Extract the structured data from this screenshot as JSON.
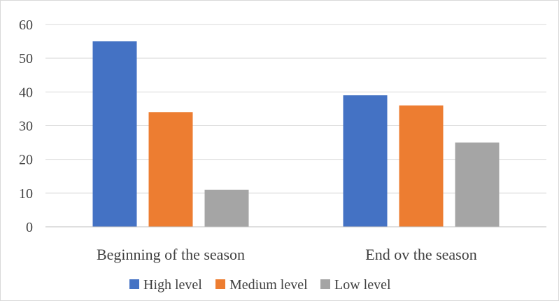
{
  "chart_data": {
    "type": "bar",
    "title": "",
    "xlabel": "",
    "ylabel": "",
    "categories": [
      "Beginning of the season",
      "End ov the season"
    ],
    "series": [
      {
        "name": "High level",
        "values": [
          55,
          39
        ],
        "color": "#4472c4"
      },
      {
        "name": "Medium level",
        "values": [
          34,
          36
        ],
        "color": "#ed7d31"
      },
      {
        "name": "Low level",
        "values": [
          11,
          25
        ],
        "color": "#a5a5a5"
      }
    ],
    "ylim": [
      0,
      60
    ],
    "yticks": [
      0,
      10,
      20,
      30,
      40,
      50,
      60
    ],
    "grid": true,
    "legend_position": "bottom"
  }
}
